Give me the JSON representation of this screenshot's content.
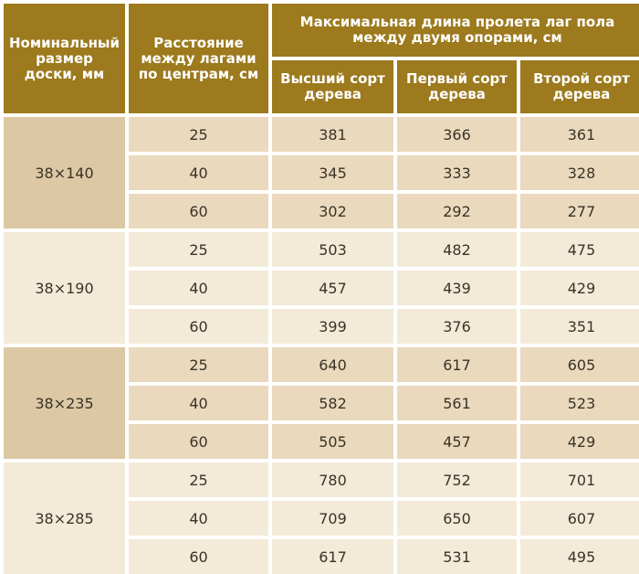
{
  "table": {
    "headers": {
      "nominal_size": "Номинальный\nразмер\nдоски, мм",
      "spacing": "Расстояние\nмежду лагами\nпо центрам, см",
      "max_span": "Максимальная длина пролета лаг пола\nмежду двумя опорами, см",
      "grades": [
        "Высший сорт\nдерева",
        "Первый сорт\nдерева",
        "Второй сорт\nдерева"
      ]
    },
    "groups": [
      {
        "size": "38×140",
        "rows": [
          {
            "spacing": "25",
            "values": [
              "381",
              "366",
              "361"
            ]
          },
          {
            "spacing": "40",
            "values": [
              "345",
              "333",
              "328"
            ]
          },
          {
            "spacing": "60",
            "values": [
              "302",
              "292",
              "277"
            ]
          }
        ]
      },
      {
        "size": "38×190",
        "rows": [
          {
            "spacing": "25",
            "values": [
              "503",
              "482",
              "475"
            ]
          },
          {
            "spacing": "40",
            "values": [
              "457",
              "439",
              "429"
            ]
          },
          {
            "spacing": "60",
            "values": [
              "399",
              "376",
              "351"
            ]
          }
        ]
      },
      {
        "size": "38×235",
        "rows": [
          {
            "spacing": "25",
            "values": [
              "640",
              "617",
              "605"
            ]
          },
          {
            "spacing": "40",
            "values": [
              "582",
              "561",
              "523"
            ]
          },
          {
            "spacing": "60",
            "values": [
              "505",
              "457",
              "429"
            ]
          }
        ]
      },
      {
        "size": "38×285",
        "rows": [
          {
            "spacing": "25",
            "values": [
              "780",
              "752",
              "701"
            ]
          },
          {
            "spacing": "40",
            "values": [
              "709",
              "650",
              "607"
            ]
          },
          {
            "spacing": "60",
            "values": [
              "617",
              "531",
              "495"
            ]
          }
        ]
      }
    ]
  }
}
